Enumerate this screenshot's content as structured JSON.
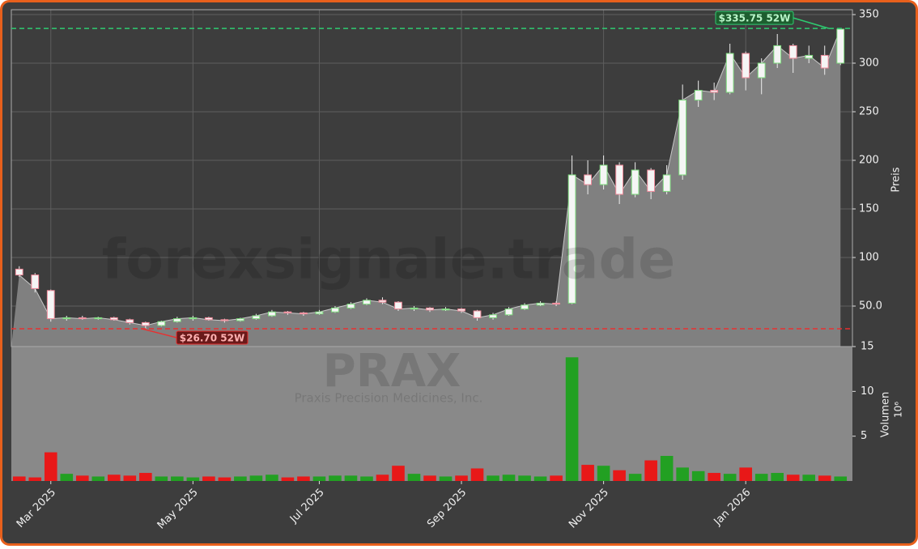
{
  "chart_data": {
    "type": "candlestick",
    "watermark": "forexsignale.trade",
    "ticker": "PRAX",
    "company": "Praxis Precision Medicines, Inc.",
    "ylabel": "Preis",
    "volume_label": "Volumen",
    "volume_scale": "10⁶",
    "categories": [
      null,
      null,
      "Mar 2025",
      null,
      null,
      null,
      null,
      null,
      null,
      null,
      null,
      "May 2025",
      null,
      null,
      null,
      null,
      null,
      null,
      null,
      "Jul 2025",
      null,
      null,
      null,
      null,
      null,
      null,
      null,
      null,
      "Sep 2025",
      null,
      null,
      null,
      null,
      null,
      null,
      null,
      null,
      "Nov 2025",
      null,
      null,
      null,
      null,
      null,
      null,
      null,
      null,
      "Jan 2026",
      null,
      null,
      null,
      null,
      null,
      null
    ],
    "open": [
      88,
      82,
      66,
      37,
      38,
      37,
      38,
      36,
      33,
      30,
      34,
      37,
      38,
      36,
      35,
      37,
      40,
      44,
      43,
      42,
      44,
      48,
      52,
      56,
      54,
      47,
      48,
      46,
      47,
      45,
      38,
      41,
      47,
      51,
      53,
      53,
      185,
      175,
      195,
      165,
      190,
      168,
      185,
      262,
      272,
      270,
      310,
      285,
      300,
      318,
      305,
      308,
      300
    ],
    "high": [
      91,
      84,
      67,
      40,
      40,
      39,
      39,
      37,
      34,
      35,
      39,
      40,
      39,
      37,
      38,
      42,
      46,
      45,
      44,
      46,
      50,
      54,
      58,
      59,
      55,
      50,
      49,
      49,
      48,
      46,
      43,
      49,
      53,
      55,
      55,
      205,
      200,
      205,
      198,
      198,
      192,
      195,
      278,
      282,
      280,
      320,
      312,
      305,
      330,
      320,
      318,
      318,
      335.75
    ],
    "low": [
      80,
      64,
      34,
      35,
      36,
      36,
      35,
      31,
      26.7,
      29,
      33,
      35,
      35,
      33,
      34,
      36,
      39,
      41,
      40,
      41,
      43,
      47,
      51,
      52,
      45,
      45,
      44,
      45,
      43,
      35,
      36,
      40,
      46,
      50,
      50,
      52,
      165,
      170,
      155,
      162,
      160,
      165,
      180,
      255,
      262,
      268,
      272,
      268,
      295,
      290,
      300,
      288,
      298
    ],
    "close": [
      82,
      68,
      37,
      38,
      37,
      38,
      36,
      33,
      30,
      34,
      37,
      38,
      36,
      35,
      37,
      40,
      44,
      43,
      42,
      44,
      48,
      52,
      56,
      54,
      47,
      48,
      46,
      47,
      45,
      38,
      41,
      47,
      51,
      53,
      52,
      185,
      175,
      195,
      165,
      190,
      168,
      185,
      262,
      272,
      270,
      310,
      285,
      300,
      318,
      305,
      308,
      295,
      335
    ],
    "volume": [
      0.5,
      0.4,
      3.2,
      0.8,
      0.6,
      0.5,
      0.7,
      0.6,
      0.9,
      0.5,
      0.5,
      0.4,
      0.5,
      0.4,
      0.5,
      0.6,
      0.7,
      0.4,
      0.5,
      0.5,
      0.6,
      0.6,
      0.5,
      0.7,
      1.7,
      0.8,
      0.6,
      0.5,
      0.6,
      1.4,
      0.6,
      0.7,
      0.6,
      0.5,
      0.6,
      13.8,
      1.8,
      1.7,
      1.2,
      0.8,
      2.3,
      2.8,
      1.5,
      1.1,
      0.9,
      0.8,
      1.5,
      0.8,
      0.9,
      0.7,
      0.7,
      0.6,
      0.5
    ],
    "up_color": "#22a022",
    "down_color": "#e81818",
    "ylim": [
      8.33,
      355
    ],
    "yticks": [
      {
        "value": 50,
        "label": "50.0"
      },
      100,
      150,
      200,
      250,
      300,
      350
    ],
    "volume_ylim": [
      0,
      15
    ],
    "volume_yticks": [
      5,
      10,
      15
    ],
    "grid": true,
    "annotations": [
      {
        "label": "$335.75 52W",
        "value": 335.75,
        "color": "#2ecc71"
      },
      {
        "label": "$26.70 52W",
        "value": 26.7,
        "color": "#e83030"
      }
    ]
  }
}
